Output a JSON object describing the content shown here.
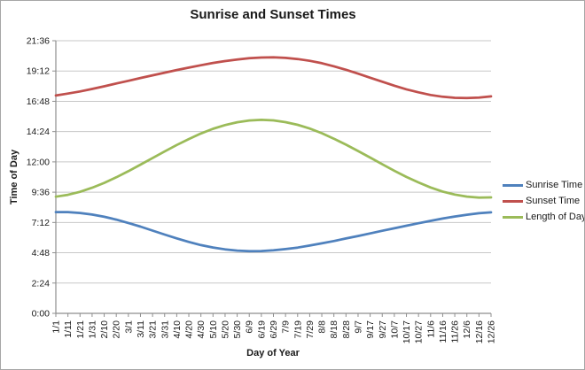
{
  "chart_data": {
    "type": "line",
    "title": "Sunrise and Sunset Times",
    "xlabel": "Day of Year",
    "ylabel": "Time of Day",
    "y_tick_labels": [
      "0:00",
      "2:24",
      "4:48",
      "7:12",
      "9:36",
      "12:00",
      "14:24",
      "16:48",
      "19:12",
      "21:36"
    ],
    "ylim_hours": [
      0,
      21.6
    ],
    "grid": true,
    "legend_position": "right",
    "categories": [
      "1/1",
      "1/11",
      "1/21",
      "1/31",
      "2/10",
      "2/20",
      "3/1",
      "3/11",
      "3/21",
      "3/31",
      "4/10",
      "4/20",
      "4/30",
      "5/10",
      "5/20",
      "5/30",
      "6/9",
      "6/19",
      "6/29",
      "7/9",
      "7/19",
      "7/29",
      "8/8",
      "8/18",
      "8/28",
      "9/7",
      "9/17",
      "9/27",
      "10/7",
      "10/17",
      "10/27",
      "11/6",
      "11/16",
      "11/26",
      "12/6",
      "12/16",
      "12/26"
    ],
    "series": [
      {
        "name": "Sunrise Time",
        "color": "#4F81BD",
        "values_hours": [
          8.02,
          8.02,
          7.95,
          7.83,
          7.65,
          7.43,
          7.16,
          6.87,
          6.56,
          6.24,
          5.94,
          5.66,
          5.41,
          5.22,
          5.07,
          4.97,
          4.93,
          4.94,
          4.99,
          5.09,
          5.21,
          5.37,
          5.55,
          5.73,
          5.93,
          6.13,
          6.33,
          6.54,
          6.74,
          6.94,
          7.14,
          7.33,
          7.51,
          7.67,
          7.81,
          7.93,
          8.0
        ]
      },
      {
        "name": "Sunset Time",
        "color": "#C0504D",
        "values_hours": [
          17.26,
          17.41,
          17.58,
          17.78,
          17.99,
          18.21,
          18.42,
          18.65,
          18.86,
          19.07,
          19.28,
          19.47,
          19.66,
          19.84,
          19.99,
          20.11,
          20.21,
          20.27,
          20.28,
          20.24,
          20.15,
          20.01,
          19.82,
          19.57,
          19.3,
          18.99,
          18.67,
          18.35,
          18.04,
          17.75,
          17.51,
          17.3,
          17.16,
          17.08,
          17.06,
          17.1,
          17.19
        ]
      },
      {
        "name": "Length of Day",
        "color": "#9BBB59",
        "values_hours": [
          9.24,
          9.39,
          9.63,
          9.95,
          10.34,
          10.78,
          11.26,
          11.78,
          12.3,
          12.83,
          13.34,
          13.81,
          14.25,
          14.62,
          14.92,
          15.14,
          15.28,
          15.33,
          15.29,
          15.15,
          14.94,
          14.64,
          14.27,
          13.84,
          13.37,
          12.86,
          12.34,
          11.81,
          11.3,
          10.81,
          10.37,
          9.97,
          9.65,
          9.41,
          9.25,
          9.17,
          9.19
        ]
      }
    ]
  },
  "colors": {
    "background": "#FFFFFF",
    "border": "#A6A6A6",
    "gridline": "#C7C7C7",
    "axis": "#8E8E8E",
    "text": "#1A1A1A"
  }
}
